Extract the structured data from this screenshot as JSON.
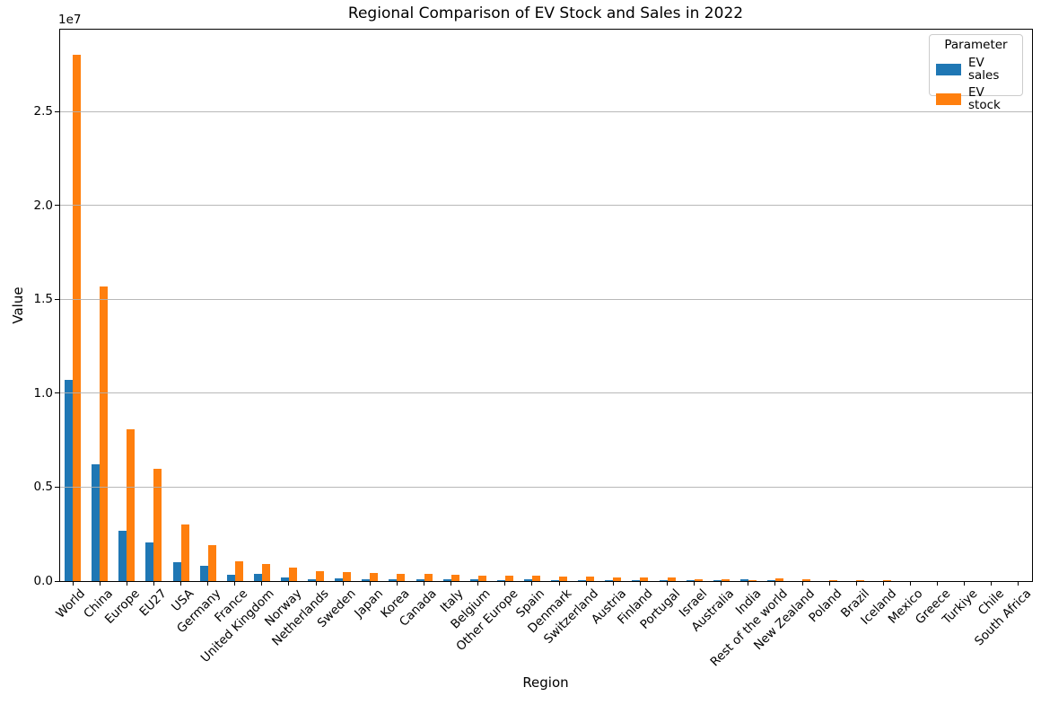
{
  "chart_data": {
    "type": "bar",
    "title": "Regional Comparison of EV Stock and Sales in 2022",
    "xlabel": "Region",
    "ylabel": "Value",
    "offset_text": "1e7",
    "legend_title": "Parameter",
    "legend_position": "upper right",
    "grid": true,
    "grid_color": "#b0b0b0",
    "background_color": "#ffffff",
    "ylim": [
      0,
      29400000
    ],
    "y_ticks": {
      "values": [
        0,
        5000000,
        10000000,
        15000000,
        20000000,
        25000000
      ],
      "labels": [
        "0.0",
        "0.5",
        "1.0",
        "1.5",
        "2.0",
        "2.5"
      ]
    },
    "categories": [
      "World",
      "China",
      "Europe",
      "EU27",
      "USA",
      "Germany",
      "France",
      "United Kingdom",
      "Norway",
      "Netherlands",
      "Sweden",
      "Japan",
      "Korea",
      "Canada",
      "Italy",
      "Belgium",
      "Other Europe",
      "Spain",
      "Denmark",
      "Switzerland",
      "Austria",
      "Finland",
      "Portugal",
      "Israel",
      "Australia",
      "India",
      "Rest of the world",
      "New Zealand",
      "Poland",
      "Brazil",
      "Iceland",
      "Mexico",
      "Greece",
      "Turkiye",
      "Chile",
      "South Africa"
    ],
    "series": [
      {
        "name": "EV sales",
        "color": "#1f77b4",
        "values": [
          10700000,
          6200000,
          2700000,
          2050000,
          990000,
          830000,
          350000,
          370000,
          170000,
          120000,
          160000,
          100000,
          120000,
          110000,
          100000,
          90000,
          60000,
          80000,
          60000,
          60000,
          45000,
          40000,
          35000,
          30000,
          50000,
          80000,
          30000,
          20000,
          20000,
          10000,
          8000,
          6000,
          5000,
          8000,
          3000,
          2000
        ]
      },
      {
        "name": "EV stock",
        "color": "#ff7f0e",
        "values": [
          28000000,
          15700000,
          8100000,
          6000000,
          3000000,
          1930000,
          1050000,
          920000,
          740000,
          550000,
          470000,
          440000,
          400000,
          370000,
          350000,
          290000,
          280000,
          270000,
          250000,
          240000,
          210000,
          190000,
          170000,
          110000,
          100000,
          65000,
          150000,
          80000,
          70000,
          50000,
          30000,
          20000,
          15000,
          12000,
          10000,
          5000
        ]
      }
    ]
  }
}
